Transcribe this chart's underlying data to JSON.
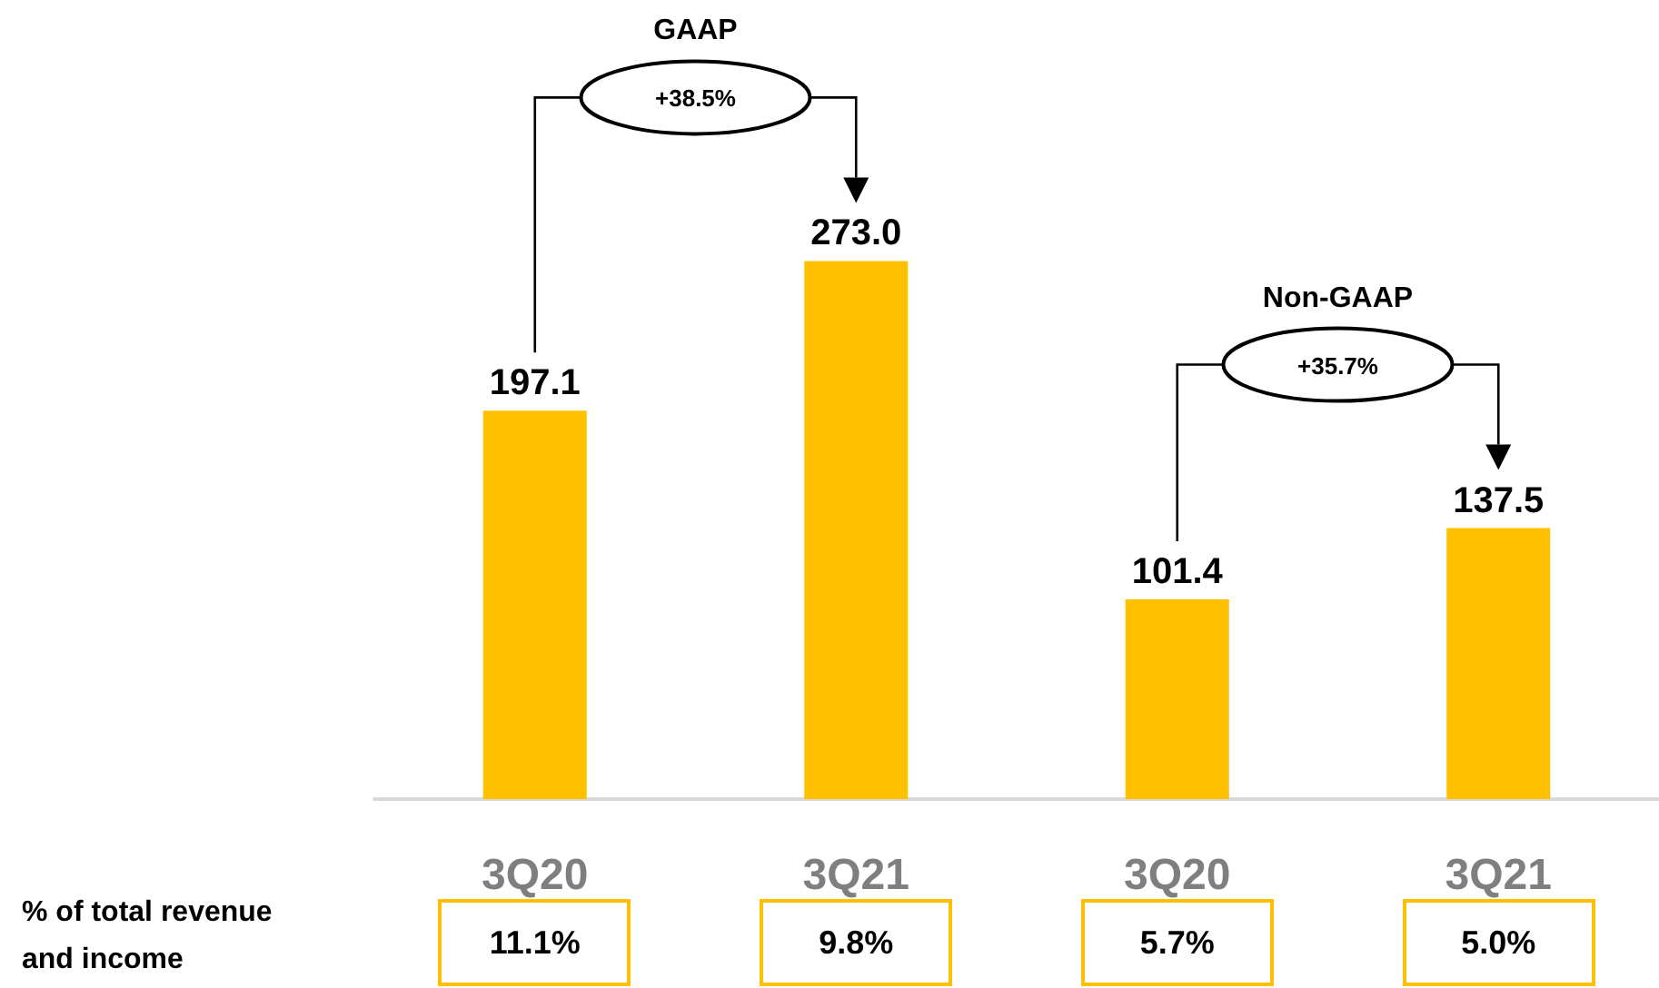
{
  "chart_data": {
    "type": "bar",
    "categories": [
      "3Q20",
      "3Q21",
      "3Q20",
      "3Q21"
    ],
    "values": [
      197.1,
      273.0,
      101.4,
      137.5
    ],
    "value_labels": [
      "197.1",
      "273.0",
      "101.4",
      "137.5"
    ],
    "color": "#ffc000",
    "annotations": [
      "GAAP",
      "+38.5%",
      "Non-GAAP",
      "+35.7%",
      "% of total revenue and income",
      "11.1%",
      "9.8%",
      "5.7%",
      "5.0%"
    ]
  }
}
